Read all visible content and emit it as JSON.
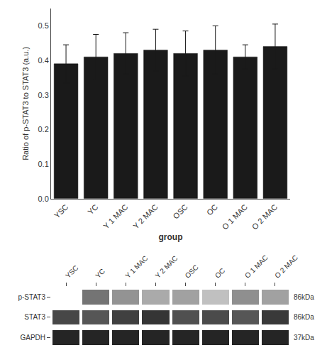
{
  "chart_data": [
    {
      "type": "bar",
      "categories": [
        "YSC",
        "YC",
        "Y 1 MAC",
        "Y 2 MAC",
        "OSC",
        "OC",
        "O 1 MAC",
        "O 2 MAC"
      ],
      "values": [
        0.39,
        0.41,
        0.42,
        0.43,
        0.42,
        0.43,
        0.41,
        0.44
      ],
      "errors": [
        0.055,
        0.065,
        0.06,
        0.06,
        0.065,
        0.07,
        0.035,
        0.065
      ],
      "color": "#1a1a1a",
      "xlabel": "group",
      "ylabel": "Ratio of p-STAT3 to STAT3 (a.u.)",
      "ylim": [
        0.0,
        0.55
      ],
      "yticks": [
        {
          "value": 0.0,
          "label": "0.0"
        },
        {
          "value": 0.1,
          "label": "0.1"
        },
        {
          "value": 0.2,
          "label": "0.2"
        },
        {
          "value": 0.3,
          "label": "0.3"
        },
        {
          "value": 0.4,
          "label": "0.4"
        },
        {
          "value": 0.5,
          "label": "0.5"
        }
      ],
      "grid": false
    },
    {
      "type": "heatmap",
      "x": [
        "YSC",
        "YC",
        "Y 1 MAC",
        "Y 2 MAC",
        "OSC",
        "OC",
        "O 1 MAC",
        "O 2 MAC"
      ],
      "y": [
        "p-STAT3",
        "STAT3",
        "GAPDH"
      ],
      "cells": [
        [
          0.0,
          0.62,
          0.48,
          0.38,
          0.42,
          0.28,
          0.5,
          0.42
        ],
        [
          0.82,
          0.75,
          0.85,
          0.9,
          0.78,
          0.8,
          0.75,
          0.88
        ],
        [
          0.97,
          0.97,
          0.97,
          0.97,
          0.97,
          0.97,
          0.97,
          0.97
        ]
      ],
      "annotations": [
        {
          "text": "86kDa",
          "y": "p-STAT3"
        },
        {
          "text": "86kDa",
          "y": "STAT3"
        },
        {
          "text": "37kDa",
          "y": "GAPDH"
        }
      ]
    }
  ]
}
